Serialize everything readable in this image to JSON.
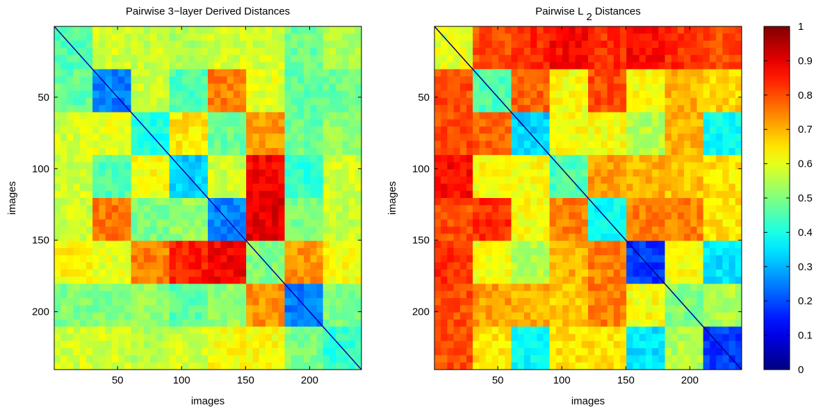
{
  "chart_data": [
    {
      "type": "heatmap",
      "title": "Pairwise 3−layer Derived Distances",
      "xlabel": "images",
      "ylabel": "images",
      "xlim": [
        0.5,
        240.5
      ],
      "ylim": [
        0.5,
        240.5
      ],
      "y_reversed": true,
      "xticks": [
        50,
        100,
        150,
        200
      ],
      "yticks": [
        50,
        100,
        150,
        200
      ],
      "block_edges": [
        0,
        30,
        60,
        90,
        120,
        150,
        180,
        210,
        240
      ],
      "block_values": [
        [
          0.45,
          0.58,
          0.57,
          0.55,
          0.58,
          0.58,
          0.48,
          0.55
        ],
        [
          0.47,
          0.25,
          0.58,
          0.45,
          0.75,
          0.6,
          0.47,
          0.48
        ],
        [
          0.58,
          0.6,
          0.4,
          0.65,
          0.48,
          0.73,
          0.48,
          0.52
        ],
        [
          0.58,
          0.45,
          0.62,
          0.33,
          0.58,
          0.88,
          0.42,
          0.58
        ],
        [
          0.58,
          0.76,
          0.5,
          0.52,
          0.25,
          0.9,
          0.5,
          0.57
        ],
        [
          0.63,
          0.6,
          0.75,
          0.85,
          0.88,
          0.5,
          0.73,
          0.62
        ],
        [
          0.5,
          0.5,
          0.52,
          0.46,
          0.52,
          0.73,
          0.25,
          0.5
        ],
        [
          0.58,
          0.58,
          0.55,
          0.58,
          0.62,
          0.62,
          0.5,
          0.42
        ]
      ],
      "diagonal_value": 0.05
    },
    {
      "type": "heatmap",
      "title": "Pairwise L",
      "title_subscript": "2",
      "title_suffix": "Distances",
      "xlabel": "images",
      "ylabel": "images",
      "xlim": [
        0.5,
        240.5
      ],
      "ylim": [
        0.5,
        240.5
      ],
      "y_reversed": true,
      "xticks": [
        50,
        100,
        150,
        200
      ],
      "yticks": [
        50,
        100,
        150,
        200
      ],
      "block_edges": [
        0,
        30,
        60,
        90,
        120,
        150,
        180,
        210,
        240
      ],
      "block_values": [
        [
          0.6,
          0.8,
          0.83,
          0.87,
          0.83,
          0.87,
          0.83,
          0.8
        ],
        [
          0.8,
          0.45,
          0.78,
          0.62,
          0.8,
          0.62,
          0.7,
          0.67
        ],
        [
          0.8,
          0.78,
          0.33,
          0.62,
          0.62,
          0.55,
          0.7,
          0.38
        ],
        [
          0.87,
          0.62,
          0.62,
          0.45,
          0.72,
          0.7,
          0.68,
          0.65
        ],
        [
          0.8,
          0.83,
          0.62,
          0.75,
          0.38,
          0.75,
          0.75,
          0.65
        ],
        [
          0.83,
          0.62,
          0.55,
          0.7,
          0.75,
          0.18,
          0.62,
          0.35
        ],
        [
          0.8,
          0.72,
          0.7,
          0.68,
          0.75,
          0.62,
          0.5,
          0.55
        ],
        [
          0.8,
          0.65,
          0.38,
          0.65,
          0.65,
          0.35,
          0.55,
          0.18
        ]
      ],
      "diagonal_value": 0.0
    }
  ],
  "colorbar": {
    "colormap": "jet",
    "range": [
      0,
      1
    ],
    "ticks": [
      "0",
      "0.1",
      "0.2",
      "0.3",
      "0.4",
      "0.5",
      "0.6",
      "0.7",
      "0.8",
      "0.9",
      "1"
    ]
  }
}
